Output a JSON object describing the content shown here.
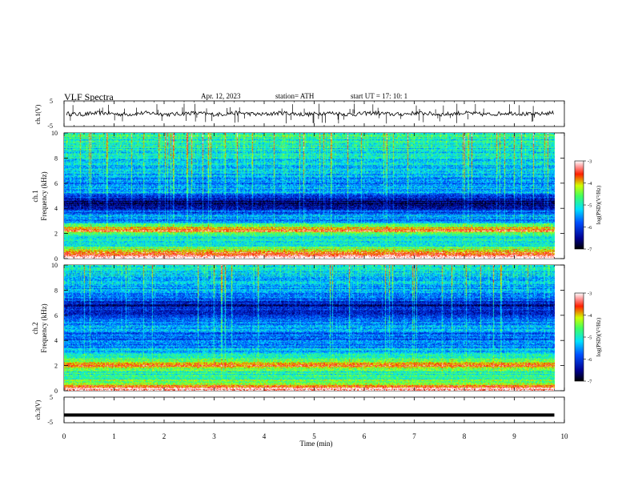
{
  "header": {
    "title": "VLF  Spectra",
    "date": "Apr. 12, 2023",
    "station": "station= ATH",
    "start_ut": "start  UT  =    17: 10: 1"
  },
  "chart_data": [
    {
      "type": "line",
      "ylabel": "ch.1(V)",
      "yticks": [
        "5",
        "-5"
      ],
      "ylim": [
        -5,
        5
      ],
      "xlim": [
        0,
        10
      ],
      "data_end_min": 9.8,
      "description_values": {
        "baseline_v": 0.0,
        "noise_amplitude_v": 0.8
      }
    },
    {
      "type": "heatmap",
      "ylabel_top": "ch.1",
      "ylabel": "Frequency  (kHz)",
      "yticks": [
        "0",
        "2",
        "4",
        "6",
        "8",
        "10"
      ],
      "ylim": [
        0,
        10
      ],
      "xlim": [
        0,
        10
      ],
      "data_end_min": 9.8,
      "colorbar": {
        "label": "log(PSD)(V²/Hz)",
        "ticks": [
          "-3",
          "-4",
          "-5",
          "-6",
          "-7"
        ],
        "range": [
          -7,
          -3
        ]
      },
      "bands_khz": [
        {
          "f": 0.1,
          "level": -3.0
        },
        {
          "f": 0.6,
          "level": -4.0
        },
        {
          "f": 1.0,
          "level": -5.0
        },
        {
          "f": 1.5,
          "level": -5.2
        },
        {
          "f": 2.0,
          "level": -4.6
        },
        {
          "f": 2.2,
          "level": -3.4
        },
        {
          "f": 3.0,
          "level": -5.6
        },
        {
          "f": 3.4,
          "level": -5.5
        },
        {
          "f": 4.4,
          "level": -6.8
        },
        {
          "f": 5.0,
          "level": -6.0
        },
        {
          "f": 5.3,
          "level": -5.4
        },
        {
          "f": 6.0,
          "level": -5.6
        },
        {
          "f": 6.6,
          "level": -5.5
        },
        {
          "f": 7.0,
          "level": -5.3
        },
        {
          "f": 8.0,
          "level": -5.2
        },
        {
          "f": 9.0,
          "level": -5.0
        },
        {
          "f": 10.0,
          "level": -4.8
        }
      ]
    },
    {
      "type": "heatmap",
      "ylabel_top": "ch.2",
      "ylabel": "Frequency  (kHz)",
      "yticks": [
        "0",
        "2",
        "4",
        "6",
        "8",
        "10"
      ],
      "ylim": [
        0,
        10
      ],
      "xlim": [
        0,
        10
      ],
      "data_end_min": 9.8,
      "colorbar": {
        "label": "log(PSD)(V²/Hz)",
        "ticks": [
          "-3",
          "-4",
          "-5",
          "-6",
          "-7"
        ],
        "range": [
          -7,
          -3
        ]
      },
      "bands_khz": [
        {
          "f": 0.1,
          "level": -3.2
        },
        {
          "f": 0.5,
          "level": -4.2
        },
        {
          "f": 1.0,
          "level": -4.8
        },
        {
          "f": 1.5,
          "level": -5.0
        },
        {
          "f": 2.0,
          "level": -3.6
        },
        {
          "f": 2.5,
          "level": -4.8
        },
        {
          "f": 3.0,
          "level": -5.2
        },
        {
          "f": 3.6,
          "level": -5.6
        },
        {
          "f": 4.5,
          "level": -5.8
        },
        {
          "f": 5.0,
          "level": -5.4
        },
        {
          "f": 6.0,
          "level": -6.0
        },
        {
          "f": 6.8,
          "level": -6.4
        },
        {
          "f": 7.5,
          "level": -5.6
        },
        {
          "f": 8.5,
          "level": -5.4
        },
        {
          "f": 9.5,
          "level": -5.2
        },
        {
          "f": 10.0,
          "level": -5.0
        }
      ]
    },
    {
      "type": "line",
      "ylabel": "ch.3(V)",
      "yticks": [
        "5",
        "-5"
      ],
      "ylim": [
        -5,
        5
      ],
      "xlim": [
        0,
        10
      ],
      "xlabel": "Time  (min)",
      "xticks": [
        "0",
        "1",
        "2",
        "3",
        "4",
        "5",
        "6",
        "7",
        "8",
        "9",
        "10"
      ],
      "data_end_min": 9.8,
      "description_values": {
        "baseline_v": -2.0,
        "noise_amplitude_v": 0.3
      }
    }
  ]
}
